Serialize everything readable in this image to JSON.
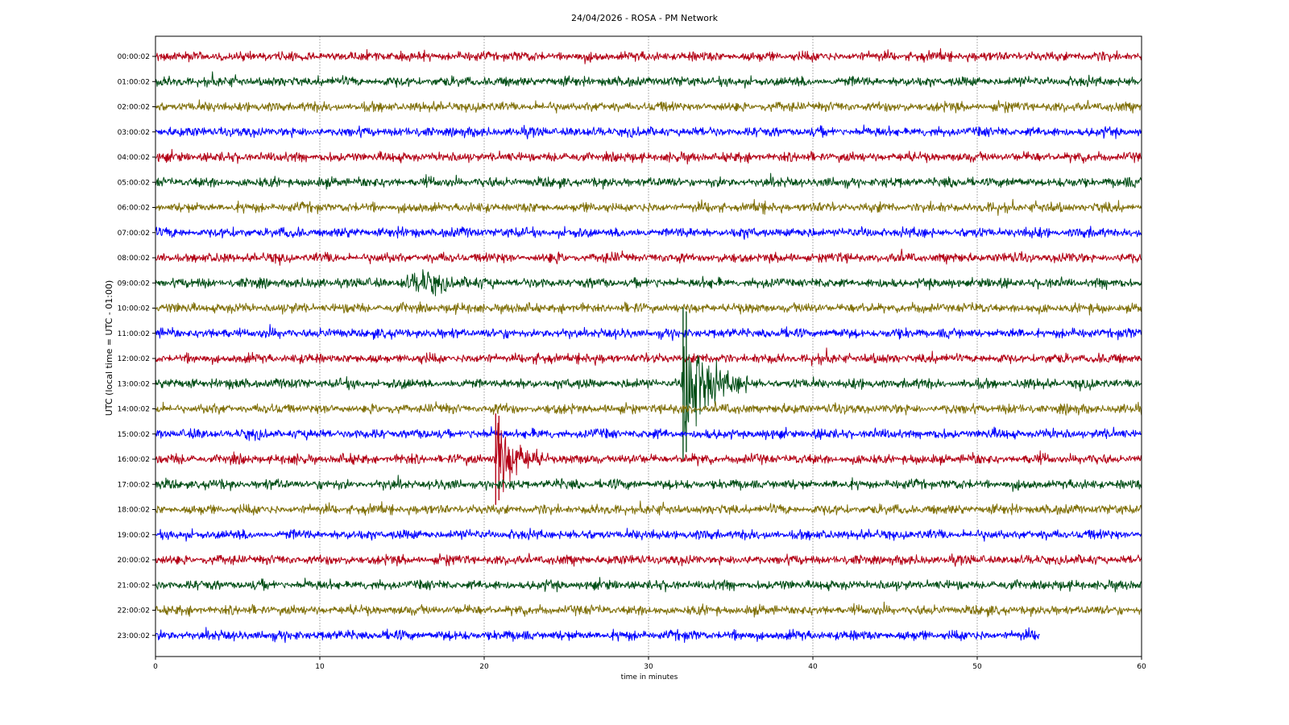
{
  "chart_data": {
    "type": "line",
    "title": "24/04/2026 - ROSA - PM Network",
    "xlabel": "time in minutes",
    "ylabel": "UTC (local time = UTC - 01:00)",
    "xlim": [
      0,
      60
    ],
    "x_ticks": [
      0,
      10,
      20,
      30,
      40,
      50,
      60
    ],
    "grid": "vertical dotted",
    "palette": [
      "#b30015",
      "#004d15",
      "#80700a",
      "#0000ff"
    ],
    "series": [
      {
        "name": "00:00:02",
        "end_minute": 60
      },
      {
        "name": "01:00:02",
        "end_minute": 60
      },
      {
        "name": "02:00:02",
        "end_minute": 60
      },
      {
        "name": "03:00:02",
        "end_minute": 60
      },
      {
        "name": "04:00:02",
        "end_minute": 60
      },
      {
        "name": "05:00:02",
        "end_minute": 60
      },
      {
        "name": "06:00:02",
        "end_minute": 60
      },
      {
        "name": "07:00:02",
        "end_minute": 60
      },
      {
        "name": "08:00:02",
        "end_minute": 60
      },
      {
        "name": "09:00:02",
        "end_minute": 60,
        "events": [
          {
            "start": 14.5,
            "end": 21,
            "peak": 16.3,
            "amp": 0.35
          }
        ]
      },
      {
        "name": "10:00:02",
        "end_minute": 60
      },
      {
        "name": "11:00:02",
        "end_minute": 60
      },
      {
        "name": "12:00:02",
        "end_minute": 60
      },
      {
        "name": "13:00:02",
        "end_minute": 60,
        "events": [
          {
            "start": 32.0,
            "end": 36,
            "peak": 32.2,
            "amp": 3.0
          }
        ]
      },
      {
        "name": "14:00:02",
        "end_minute": 60
      },
      {
        "name": "15:00:02",
        "end_minute": 60
      },
      {
        "name": "16:00:02",
        "end_minute": 60,
        "events": [
          {
            "start": 20.5,
            "end": 24,
            "peak": 20.8,
            "amp": 1.8
          }
        ]
      },
      {
        "name": "17:00:02",
        "end_minute": 60
      },
      {
        "name": "18:00:02",
        "end_minute": 60
      },
      {
        "name": "19:00:02",
        "end_minute": 60
      },
      {
        "name": "20:00:02",
        "end_minute": 60
      },
      {
        "name": "21:00:02",
        "end_minute": 60
      },
      {
        "name": "22:00:02",
        "end_minute": 60
      },
      {
        "name": "23:00:02",
        "end_minute": 53.8
      }
    ]
  }
}
